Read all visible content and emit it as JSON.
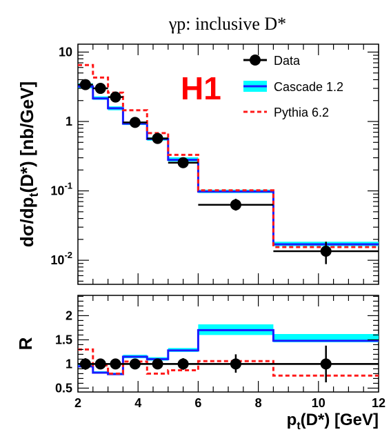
{
  "figure_title": "γp:  inclusive D*",
  "logo": "H1",
  "colors": {
    "data": "#000000",
    "cascade_line": "#1a1aff",
    "cascade_band": "#00ffff",
    "pythia": "#ff1a1a",
    "logo": "#ff0000"
  },
  "chart_data": [
    {
      "type": "line",
      "name": "cross-section",
      "ylabel_main": "dσ/dp",
      "ylabel_sub": "t",
      "ylabel_tail": "(D*)  [nb/GeV]",
      "xlim": [
        2,
        12
      ],
      "ylim": [
        0.0045,
        13
      ],
      "yscale": "log",
      "yticks": [
        {
          "value": 10,
          "base": "10",
          "exp": ""
        },
        {
          "value": 1,
          "base": "1",
          "exp": ""
        },
        {
          "value": 0.1,
          "base": "10",
          "exp": "-1"
        },
        {
          "value": 0.01,
          "base": "10",
          "exp": "-2"
        }
      ],
      "bin_edges": [
        2.0,
        2.5,
        3.0,
        3.5,
        4.3,
        5.0,
        6.0,
        8.5,
        12.0
      ],
      "legend_position": "top-right",
      "series": [
        {
          "name": "Data",
          "style": "points",
          "x": [
            2.25,
            2.75,
            3.25,
            3.9,
            4.65,
            5.5,
            7.25,
            10.25
          ],
          "y": [
            3.4,
            3.0,
            2.25,
            0.97,
            0.57,
            0.255,
            0.063,
            0.0135
          ],
          "y_err_low": [
            2.9,
            2.6,
            1.95,
            0.88,
            0.51,
            0.225,
            0.052,
            0.0088
          ],
          "y_err_high": [
            3.95,
            3.5,
            2.6,
            1.06,
            0.64,
            0.29,
            0.077,
            0.0185
          ]
        },
        {
          "name": "Cascade 1.2",
          "style": "band-step",
          "values": [
            3.2,
            2.15,
            1.55,
            0.93,
            0.56,
            0.28,
            0.098,
            0.017
          ],
          "band_low": [
            3.0,
            2.05,
            1.45,
            0.89,
            0.53,
            0.265,
            0.093,
            0.016
          ],
          "band_high": [
            3.55,
            2.3,
            1.65,
            0.97,
            0.59,
            0.305,
            0.104,
            0.0185
          ]
        },
        {
          "name": "Pythia 6.2",
          "style": "dashed-step",
          "values": [
            6.5,
            4.3,
            2.6,
            1.45,
            0.68,
            0.33,
            0.102,
            0.0155
          ]
        }
      ]
    },
    {
      "type": "line",
      "name": "ratio",
      "ylabel": "R",
      "xlabel_main": "p",
      "xlabel_sub": "t",
      "xlabel_tail": "(D*) [GeV]",
      "xlim": [
        2,
        12
      ],
      "ylim": [
        0.42,
        2.42
      ],
      "yticks": [
        0.5,
        1,
        1.5,
        2
      ],
      "xticks": [
        2,
        4,
        6,
        8,
        10,
        12
      ],
      "bin_edges": [
        2.0,
        2.5,
        3.0,
        3.5,
        4.3,
        5.0,
        6.0,
        8.5,
        12.0
      ],
      "series": [
        {
          "name": "Data",
          "style": "points",
          "reference": 1.0,
          "x": [
            2.25,
            2.75,
            3.25,
            3.9,
            4.65,
            5.5,
            7.25,
            10.25
          ],
          "y": [
            1.0,
            1.0,
            1.0,
            1.0,
            1.0,
            1.0,
            1.0,
            1.0
          ],
          "y_err_low": [
            0.88,
            0.9,
            0.9,
            0.91,
            0.9,
            0.88,
            0.82,
            0.62
          ],
          "y_err_high": [
            1.12,
            1.1,
            1.1,
            1.09,
            1.1,
            1.12,
            1.2,
            1.38
          ]
        },
        {
          "name": "Cascade 1.2",
          "style": "band-step",
          "values": [
            0.95,
            0.82,
            0.79,
            1.15,
            1.1,
            1.28,
            1.7,
            1.48
          ],
          "band_low": [
            0.93,
            0.8,
            0.77,
            1.12,
            1.07,
            1.25,
            1.6,
            1.45
          ],
          "band_high": [
            0.99,
            0.85,
            0.82,
            1.19,
            1.14,
            1.33,
            1.82,
            1.62
          ]
        },
        {
          "name": "Pythia 6.2",
          "style": "dashed-step",
          "values": [
            1.3,
            0.97,
            0.8,
            1.05,
            0.8,
            0.87,
            1.06,
            0.76
          ]
        }
      ]
    }
  ]
}
